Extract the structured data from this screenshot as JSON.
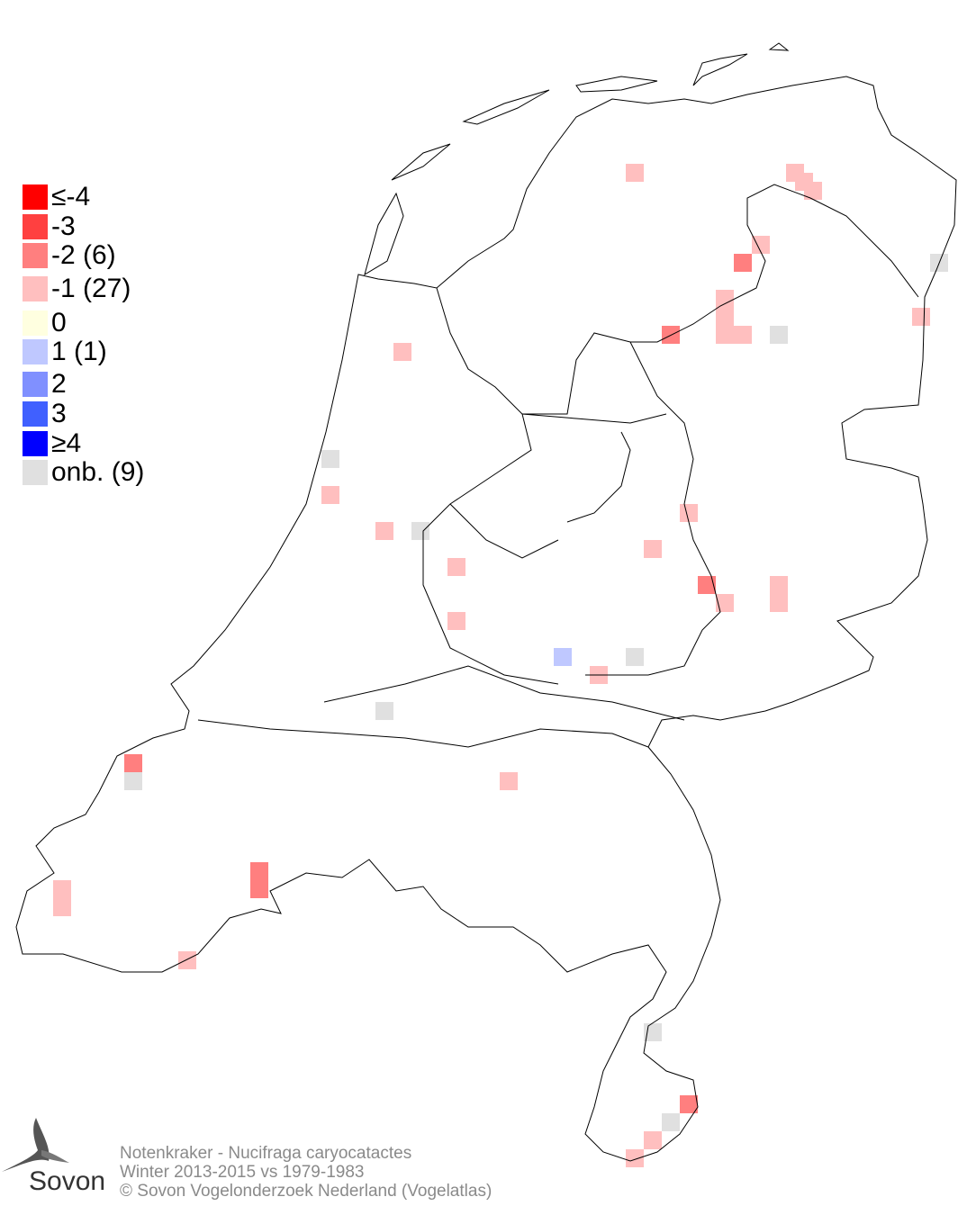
{
  "legend": [
    {
      "label": "≤-4",
      "color": "#ff0000"
    },
    {
      "label": "-3",
      "color": "#ff4040"
    },
    {
      "label": "-2 (6)",
      "color": "#ff7f7f"
    },
    {
      "label": "-1 (27)",
      "color": "#ffbfbf"
    },
    {
      "label": " 0",
      "color": "#ffffe0"
    },
    {
      "label": " 1 (1)",
      "color": "#bfc8ff"
    },
    {
      "label": " 2",
      "color": "#8090ff"
    },
    {
      "label": " 3",
      "color": "#4060ff"
    },
    {
      "label": "≥4",
      "color": "#0000ff"
    },
    {
      "label": "onb. (9)",
      "color": "#e0e0e0"
    }
  ],
  "footer": {
    "species": "Notenkraker - Nucifraga caryocatactes",
    "period": "Winter 2013-2015 vs 1979-1983",
    "copyright": "© Sovon Vogelonderzoek Nederland (Vogelatlas)"
  },
  "logo": {
    "text": "Sovon"
  }
}
